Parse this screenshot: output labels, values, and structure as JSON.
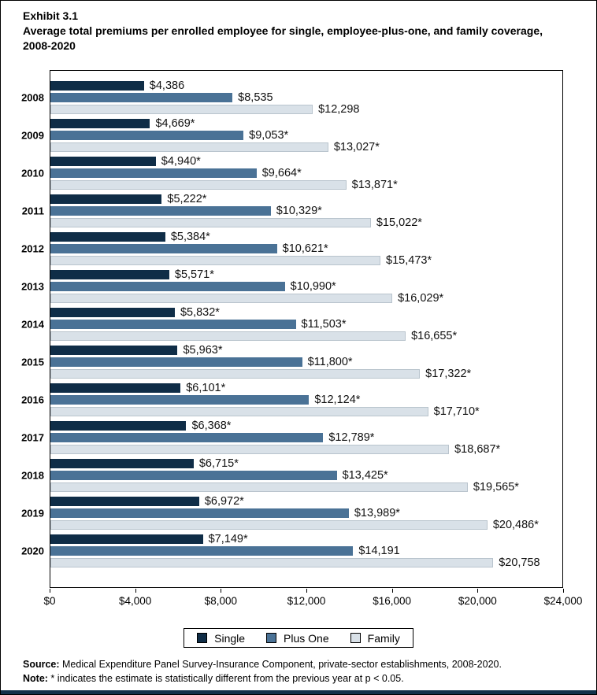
{
  "header": {
    "exhibit": "Exhibit 3.1",
    "title": "Average total premiums per enrolled employee for single, employee-plus-one, and family coverage, 2008-2020"
  },
  "chart_data": {
    "type": "bar",
    "orientation": "horizontal",
    "title": "Average total premiums per enrolled employee for single, employee-plus-one, and family coverage, 2008-2020",
    "categories": [
      "2008",
      "2009",
      "2010",
      "2011",
      "2012",
      "2013",
      "2014",
      "2015",
      "2016",
      "2017",
      "2018",
      "2019",
      "2020"
    ],
    "series": [
      {
        "name": "Single",
        "color": "#0f2d47",
        "values": [
          4386,
          4669,
          4940,
          5222,
          5384,
          5571,
          5832,
          5963,
          6101,
          6368,
          6715,
          6972,
          7149
        ],
        "labels": [
          "$4,386",
          "$4,669*",
          "$4,940*",
          "$5,222*",
          "$5,384*",
          "$5,571*",
          "$5,832*",
          "$5,963*",
          "$6,101*",
          "$6,368*",
          "$6,715*",
          "$6,972*",
          "$7,149*"
        ]
      },
      {
        "name": "Plus One",
        "color": "#4a7296",
        "values": [
          8535,
          9053,
          9664,
          10329,
          10621,
          10990,
          11503,
          11800,
          12124,
          12789,
          13425,
          13989,
          14191
        ],
        "labels": [
          "$8,535",
          "$9,053*",
          "$9,664*",
          "$10,329*",
          "$10,621*",
          "$10,990*",
          "$11,503*",
          "$11,800*",
          "$12,124*",
          "$12,789*",
          "$13,425*",
          "$13,989*",
          "$14,191"
        ]
      },
      {
        "name": "Family",
        "color": "#d9e1e8",
        "border": "#b9c4cd",
        "values": [
          12298,
          13027,
          13871,
          15022,
          15473,
          16029,
          16655,
          17322,
          17710,
          18687,
          19565,
          20486,
          20758
        ],
        "labels": [
          "$12,298",
          "$13,027*",
          "$13,871*",
          "$15,022*",
          "$15,473*",
          "$16,029*",
          "$16,655*",
          "$17,322*",
          "$17,710*",
          "$18,687*",
          "$19,565*",
          "$20,486*",
          "$20,758"
        ]
      }
    ],
    "xlim": [
      0,
      24000
    ],
    "x_ticks": [
      "$0",
      "$4,000",
      "$8,000",
      "$12,000",
      "$16,000",
      "$20,000",
      "$24,000"
    ],
    "grid": false,
    "legend_position": "bottom"
  },
  "footer": {
    "source_label": "Source:",
    "source_text": " Medical Expenditure Panel Survey-Insurance Component, private-sector establishments, 2008-2020.",
    "note_label": "Note:",
    "note_text": " * indicates the estimate is statistically different from the previous year at p < 0.05."
  },
  "colors": {
    "single": "#0f2d47",
    "plus_one": "#4a7296",
    "family": "#d9e1e8",
    "frame": "#000000",
    "bottom_strip": "#12304a"
  }
}
